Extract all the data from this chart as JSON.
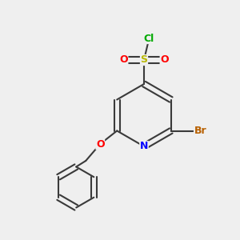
{
  "bg_color": "#efefef",
  "bond_color": "#3a3a3a",
  "bond_lw": 1.5,
  "atom_colors": {
    "Cl": "#00aa00",
    "S": "#b8b800",
    "O": "#ff0000",
    "N": "#0000ff",
    "Br": "#b86000",
    "C": "#3a3a3a"
  },
  "font_size": 9,
  "font_size_small": 8
}
